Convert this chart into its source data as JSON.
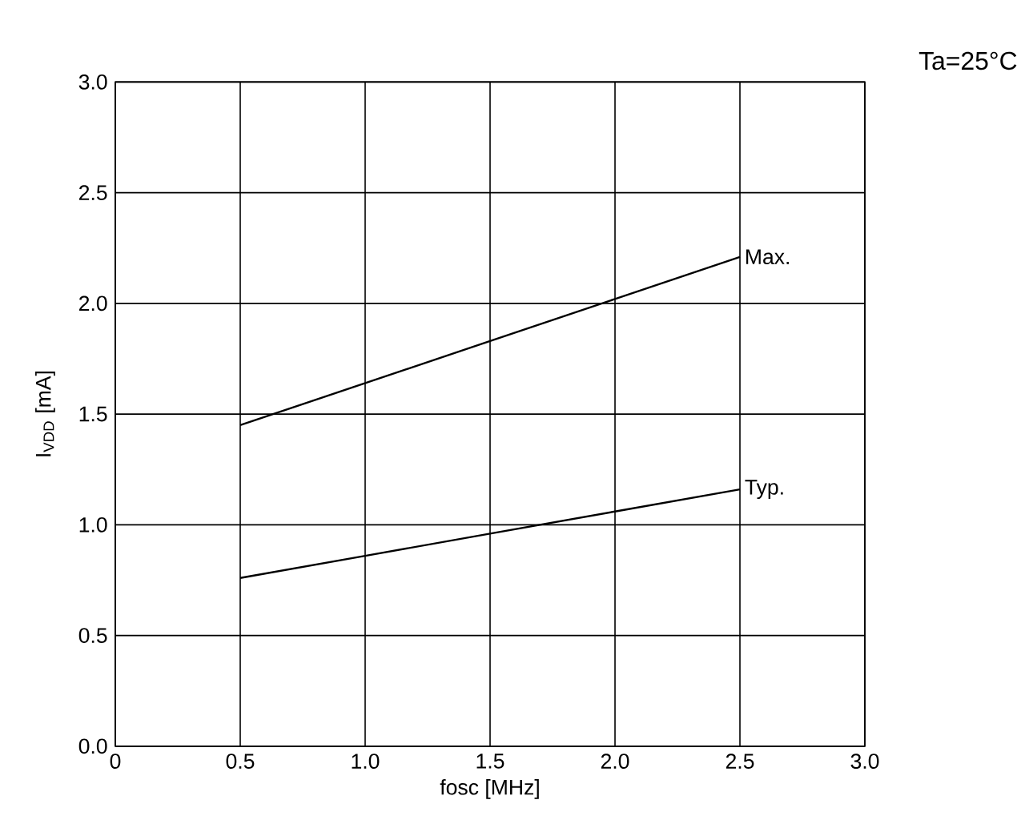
{
  "chart_data": {
    "type": "line",
    "xlabel": "fosc [MHz]",
    "ylabel": "I$_{VDD}$ [mA]",
    "annotations": [
      "Ta=25°C"
    ],
    "x": [
      0.5,
      1.0,
      1.5,
      2.0,
      2.5
    ],
    "series": [
      {
        "name": "Max.",
        "color": "#000000",
        "values": [
          1.45,
          1.64,
          1.83,
          2.02,
          2.21
        ]
      },
      {
        "name": "Typ.",
        "color": "#000000",
        "values": [
          0.76,
          0.86,
          0.96,
          1.06,
          1.16
        ]
      }
    ],
    "xlim": [
      0,
      3.0
    ],
    "ylim": [
      0,
      3.0
    ],
    "xticks": [
      {
        "value": 0,
        "label": "0"
      },
      {
        "value": 0.5,
        "label": "0.5"
      },
      {
        "value": 1.0,
        "label": "1.0"
      },
      {
        "value": 1.5,
        "label": "1.5"
      },
      {
        "value": 2.0,
        "label": "2.0"
      },
      {
        "value": 2.5,
        "label": "2.5"
      },
      {
        "value": 3.0,
        "label": "3.0"
      }
    ],
    "yticks": [
      {
        "value": 0,
        "label": "0.0"
      },
      {
        "value": 0.5,
        "label": "0.5"
      },
      {
        "value": 1.0,
        "label": "1.0"
      },
      {
        "value": 1.5,
        "label": "1.5"
      },
      {
        "value": 2.0,
        "label": "2.0"
      },
      {
        "value": 2.5,
        "label": "2.5"
      },
      {
        "value": 3.0,
        "label": "3.0"
      }
    ],
    "grid": true,
    "legend": false,
    "marker": "none",
    "line_style": "solid"
  }
}
